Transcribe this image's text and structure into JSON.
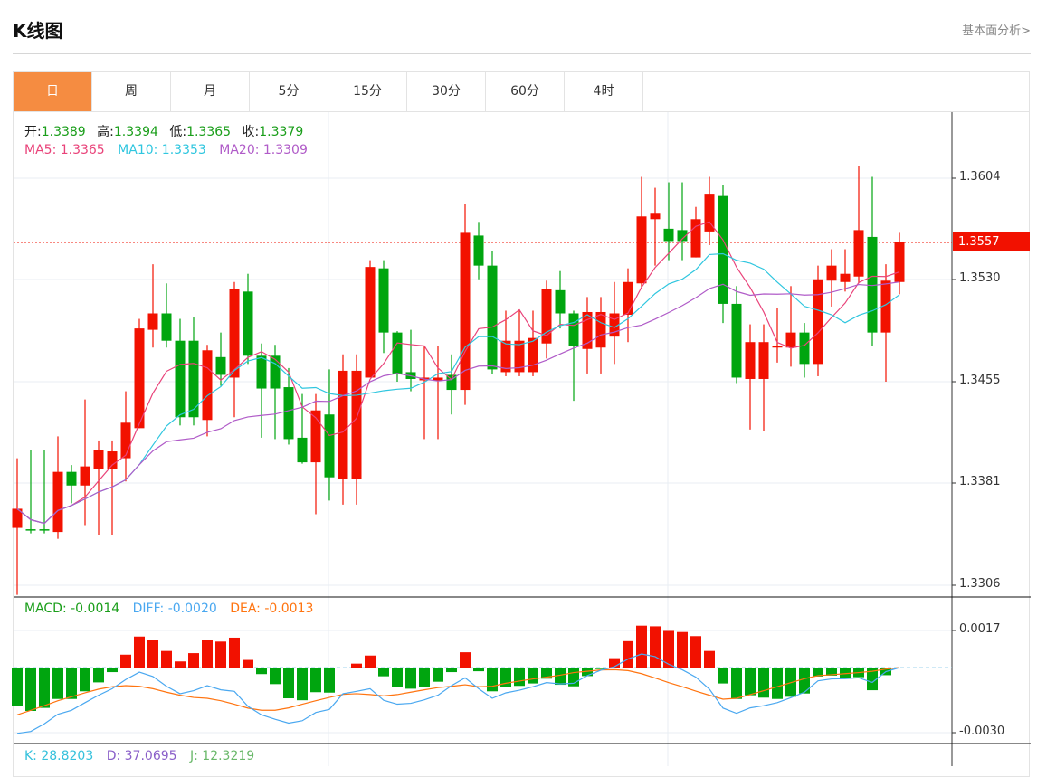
{
  "header": {
    "title": "K线图",
    "link": "基本面分析>"
  },
  "tabs": [
    {
      "label": "日",
      "active": true
    },
    {
      "label": "周"
    },
    {
      "label": "月"
    },
    {
      "label": "5分"
    },
    {
      "label": "15分"
    },
    {
      "label": "30分"
    },
    {
      "label": "60分"
    },
    {
      "label": "4时"
    }
  ],
  "ohlc": {
    "open_label": "开:",
    "open": "1.3389",
    "high_label": "高:",
    "high": "1.3394",
    "low_label": "低:",
    "low": "1.3365",
    "close_label": "收:",
    "close": "1.3379"
  },
  "ma": {
    "ma5": "MA5: 1.3365",
    "ma10": "MA10: 1.3353",
    "ma20": "MA20: 1.3309"
  },
  "macd_info": {
    "macd": "MACD: -0.0014",
    "diff": "DIFF: -0.0020",
    "dea": "DEA: -0.0013"
  },
  "kdj_info": {
    "k": "K: 28.8203",
    "d": "D: 37.0695",
    "j": "J: 12.3219"
  },
  "price_axis": [
    "1.3604",
    "1.3530",
    "1.3455",
    "1.3381",
    "1.3306"
  ],
  "macd_axis": [
    "0.0017",
    "-0.0030"
  ],
  "last_price": "1.3557",
  "colors": {
    "up": "#f21100",
    "down": "#00a50f",
    "ma5": "#e9437a",
    "ma10": "#2fc6df",
    "ma20": "#b05bc8",
    "diff": "#4aa8f0",
    "dea": "#ff7410",
    "accent": "#f58c41"
  },
  "chart_data": {
    "type": "candlestick",
    "candles": [
      [
        1.3348,
        1.3399,
        1.3299,
        1.3362
      ],
      [
        1.3347,
        1.3405,
        1.3344,
        1.3346
      ],
      [
        1.3347,
        1.3405,
        1.3344,
        1.3346
      ],
      [
        1.3345,
        1.3415,
        1.334,
        1.3389
      ],
      [
        1.3389,
        1.3394,
        1.3366,
        1.3379
      ],
      [
        1.3379,
        1.3442,
        1.335,
        1.3393
      ],
      [
        1.3391,
        1.3412,
        1.3343,
        1.3405
      ],
      [
        1.3391,
        1.3412,
        1.3343,
        1.3404
      ],
      [
        1.3399,
        1.3448,
        1.3382,
        1.3425
      ],
      [
        1.3421,
        1.3501,
        1.3421,
        1.3494
      ],
      [
        1.3493,
        1.3541,
        1.348,
        1.3505
      ],
      [
        1.3505,
        1.3527,
        1.348,
        1.3485
      ],
      [
        1.3485,
        1.3501,
        1.3423,
        1.3429
      ],
      [
        1.3485,
        1.3502,
        1.3423,
        1.3429
      ],
      [
        1.3427,
        1.3482,
        1.3415,
        1.3478
      ],
      [
        1.3473,
        1.3491,
        1.3452,
        1.346
      ],
      [
        1.3458,
        1.3528,
        1.3429,
        1.3523
      ],
      [
        1.3521,
        1.3534,
        1.3468,
        1.3474
      ],
      [
        1.3474,
        1.3483,
        1.3414,
        1.345
      ],
      [
        1.3474,
        1.3482,
        1.3413,
        1.345
      ],
      [
        1.3451,
        1.3465,
        1.3409,
        1.3413
      ],
      [
        1.3414,
        1.3446,
        1.3395,
        1.3396
      ],
      [
        1.3396,
        1.3446,
        1.3358,
        1.3434
      ],
      [
        1.3431,
        1.3464,
        1.3368,
        1.3385
      ],
      [
        1.3384,
        1.3475,
        1.3365,
        1.3463
      ],
      [
        1.3384,
        1.3475,
        1.3365,
        1.3463
      ],
      [
        1.3458,
        1.3544,
        1.3458,
        1.3539
      ],
      [
        1.3538,
        1.3544,
        1.3476,
        1.3491
      ],
      [
        1.3491,
        1.3492,
        1.3455,
        1.3461
      ],
      [
        1.3462,
        1.3493,
        1.3448,
        1.3457
      ],
      [
        1.3456,
        1.3481,
        1.3413,
        1.3458
      ],
      [
        1.3456,
        1.3481,
        1.3413,
        1.3458
      ],
      [
        1.346,
        1.3475,
        1.3431,
        1.3449
      ],
      [
        1.3449,
        1.3585,
        1.3438,
        1.3564
      ],
      [
        1.3562,
        1.3572,
        1.353,
        1.354
      ],
      [
        1.354,
        1.3551,
        1.3461,
        1.3464
      ],
      [
        1.3462,
        1.3507,
        1.3459,
        1.3485
      ],
      [
        1.3462,
        1.3508,
        1.3459,
        1.3485
      ],
      [
        1.3462,
        1.3507,
        1.3459,
        1.3487
      ],
      [
        1.3483,
        1.3529,
        1.3472,
        1.3523
      ],
      [
        1.3522,
        1.3536,
        1.3494,
        1.3505
      ],
      [
        1.3505,
        1.3507,
        1.3441,
        1.3481
      ],
      [
        1.3479,
        1.3517,
        1.3461,
        1.3506
      ],
      [
        1.348,
        1.3517,
        1.3461,
        1.3506
      ],
      [
        1.3488,
        1.3528,
        1.3468,
        1.3505
      ],
      [
        1.3504,
        1.3538,
        1.3484,
        1.3528
      ],
      [
        1.3527,
        1.3605,
        1.3523,
        1.3576
      ],
      [
        1.3574,
        1.3597,
        1.354,
        1.3578
      ],
      [
        1.3567,
        1.3601,
        1.3544,
        1.3558
      ],
      [
        1.3566,
        1.3601,
        1.3544,
        1.3558
      ],
      [
        1.3546,
        1.3583,
        1.3546,
        1.3574
      ],
      [
        1.3565,
        1.3605,
        1.3555,
        1.3592
      ],
      [
        1.3591,
        1.3599,
        1.3498,
        1.3512
      ],
      [
        1.3512,
        1.3525,
        1.3454,
        1.3458
      ],
      [
        1.3457,
        1.3497,
        1.342,
        1.3484
      ],
      [
        1.3457,
        1.3497,
        1.3419,
        1.3484
      ],
      [
        1.348,
        1.3509,
        1.3469,
        1.3481
      ],
      [
        1.348,
        1.3525,
        1.3466,
        1.3491
      ],
      [
        1.3491,
        1.3498,
        1.3458,
        1.3468
      ],
      [
        1.3468,
        1.354,
        1.3459,
        1.353
      ],
      [
        1.3529,
        1.3552,
        1.351,
        1.354
      ],
      [
        1.3528,
        1.3552,
        1.3521,
        1.3534
      ],
      [
        1.3532,
        1.3613,
        1.3527,
        1.3566
      ],
      [
        1.3561,
        1.3605,
        1.3481,
        1.3491
      ],
      [
        1.3491,
        1.3541,
        1.3455,
        1.3529
      ],
      [
        1.3528,
        1.3564,
        1.3519,
        1.3557
      ]
    ],
    "ylim": [
      1.3295,
      1.3625
    ],
    "macd_unit": 0.0001,
    "macd_hist": [
      -17.5,
      -19.9,
      -18.5,
      -14.4,
      -14.4,
      -10.9,
      -6.8,
      -2.1,
      5.9,
      14.2,
      12.8,
      7.6,
      2.8,
      6.6,
      12.7,
      11.9,
      13.7,
      3.5,
      -3.0,
      -7.6,
      -14.1,
      -15.0,
      -11.3,
      -11.5,
      -0.2,
      1.8,
      5.5,
      -4.0,
      -8.8,
      -9.7,
      -8.7,
      -6.5,
      -2.1,
      7.0,
      -1.7,
      -10.9,
      -8.8,
      -8.4,
      -7.3,
      -5.1,
      -7.9,
      -8.6,
      -3.9,
      -0.7,
      4.3,
      12.1,
      19.2,
      18.9,
      16.8,
      16.3,
      14.4,
      7.6,
      -7.3,
      -14.4,
      -12.7,
      -13.8,
      -14.4,
      -13.4,
      -11.9,
      -4.1,
      -3.7,
      -4.6,
      -4.4,
      -10.4,
      -3.5,
      0
    ],
    "diff": [
      -30.2,
      -29.3,
      -25.8,
      -21.4,
      -19.6,
      -16.1,
      -12.7,
      -9.7,
      -5.5,
      -2.1,
      -4.1,
      -8.6,
      -12.0,
      -10.6,
      -8.3,
      -10.2,
      -10.9,
      -17.8,
      -21.7,
      -23.7,
      -25.5,
      -24.4,
      -20.6,
      -19.2,
      -12.0,
      -10.9,
      -9.7,
      -15.0,
      -16.8,
      -16.4,
      -14.8,
      -12.7,
      -8.3,
      -4.7,
      -9.7,
      -14.1,
      -11.6,
      -10.4,
      -8.8,
      -6.9,
      -7.5,
      -7.2,
      -3.7,
      -1.2,
      0.4,
      3.9,
      6.2,
      5.0,
      1.5,
      -1.0,
      -4.4,
      -9.9,
      -18.6,
      -21.0,
      -18.5,
      -17.5,
      -16.1,
      -13.8,
      -11.3,
      -6.1,
      -5.2,
      -5.1,
      -4.7,
      -6.8,
      -1.9,
      0
    ],
    "dea": [
      -21.7,
      -19.6,
      -17.5,
      -15.2,
      -13.4,
      -11.6,
      -9.9,
      -8.8,
      -8.3,
      -8.6,
      -9.7,
      -11.3,
      -12.7,
      -13.7,
      -14.1,
      -15.2,
      -16.8,
      -18.6,
      -19.6,
      -19.6,
      -18.5,
      -16.8,
      -15.2,
      -13.7,
      -12.3,
      -12.0,
      -12.4,
      -13.0,
      -12.4,
      -11.3,
      -10.2,
      -9.2,
      -8.6,
      -7.9,
      -8.8,
      -8.6,
      -7.2,
      -6.2,
      -5.2,
      -4.4,
      -3.5,
      -2.3,
      -1.7,
      -1.1,
      -1.0,
      -1.4,
      -2.8,
      -4.8,
      -6.9,
      -8.8,
      -10.8,
      -12.7,
      -14.5,
      -14.1,
      -12.4,
      -10.6,
      -8.8,
      -6.9,
      -5.1,
      -3.7,
      -3.3,
      -2.8,
      -2.3,
      -1.7,
      -0.7,
      0
    ]
  }
}
